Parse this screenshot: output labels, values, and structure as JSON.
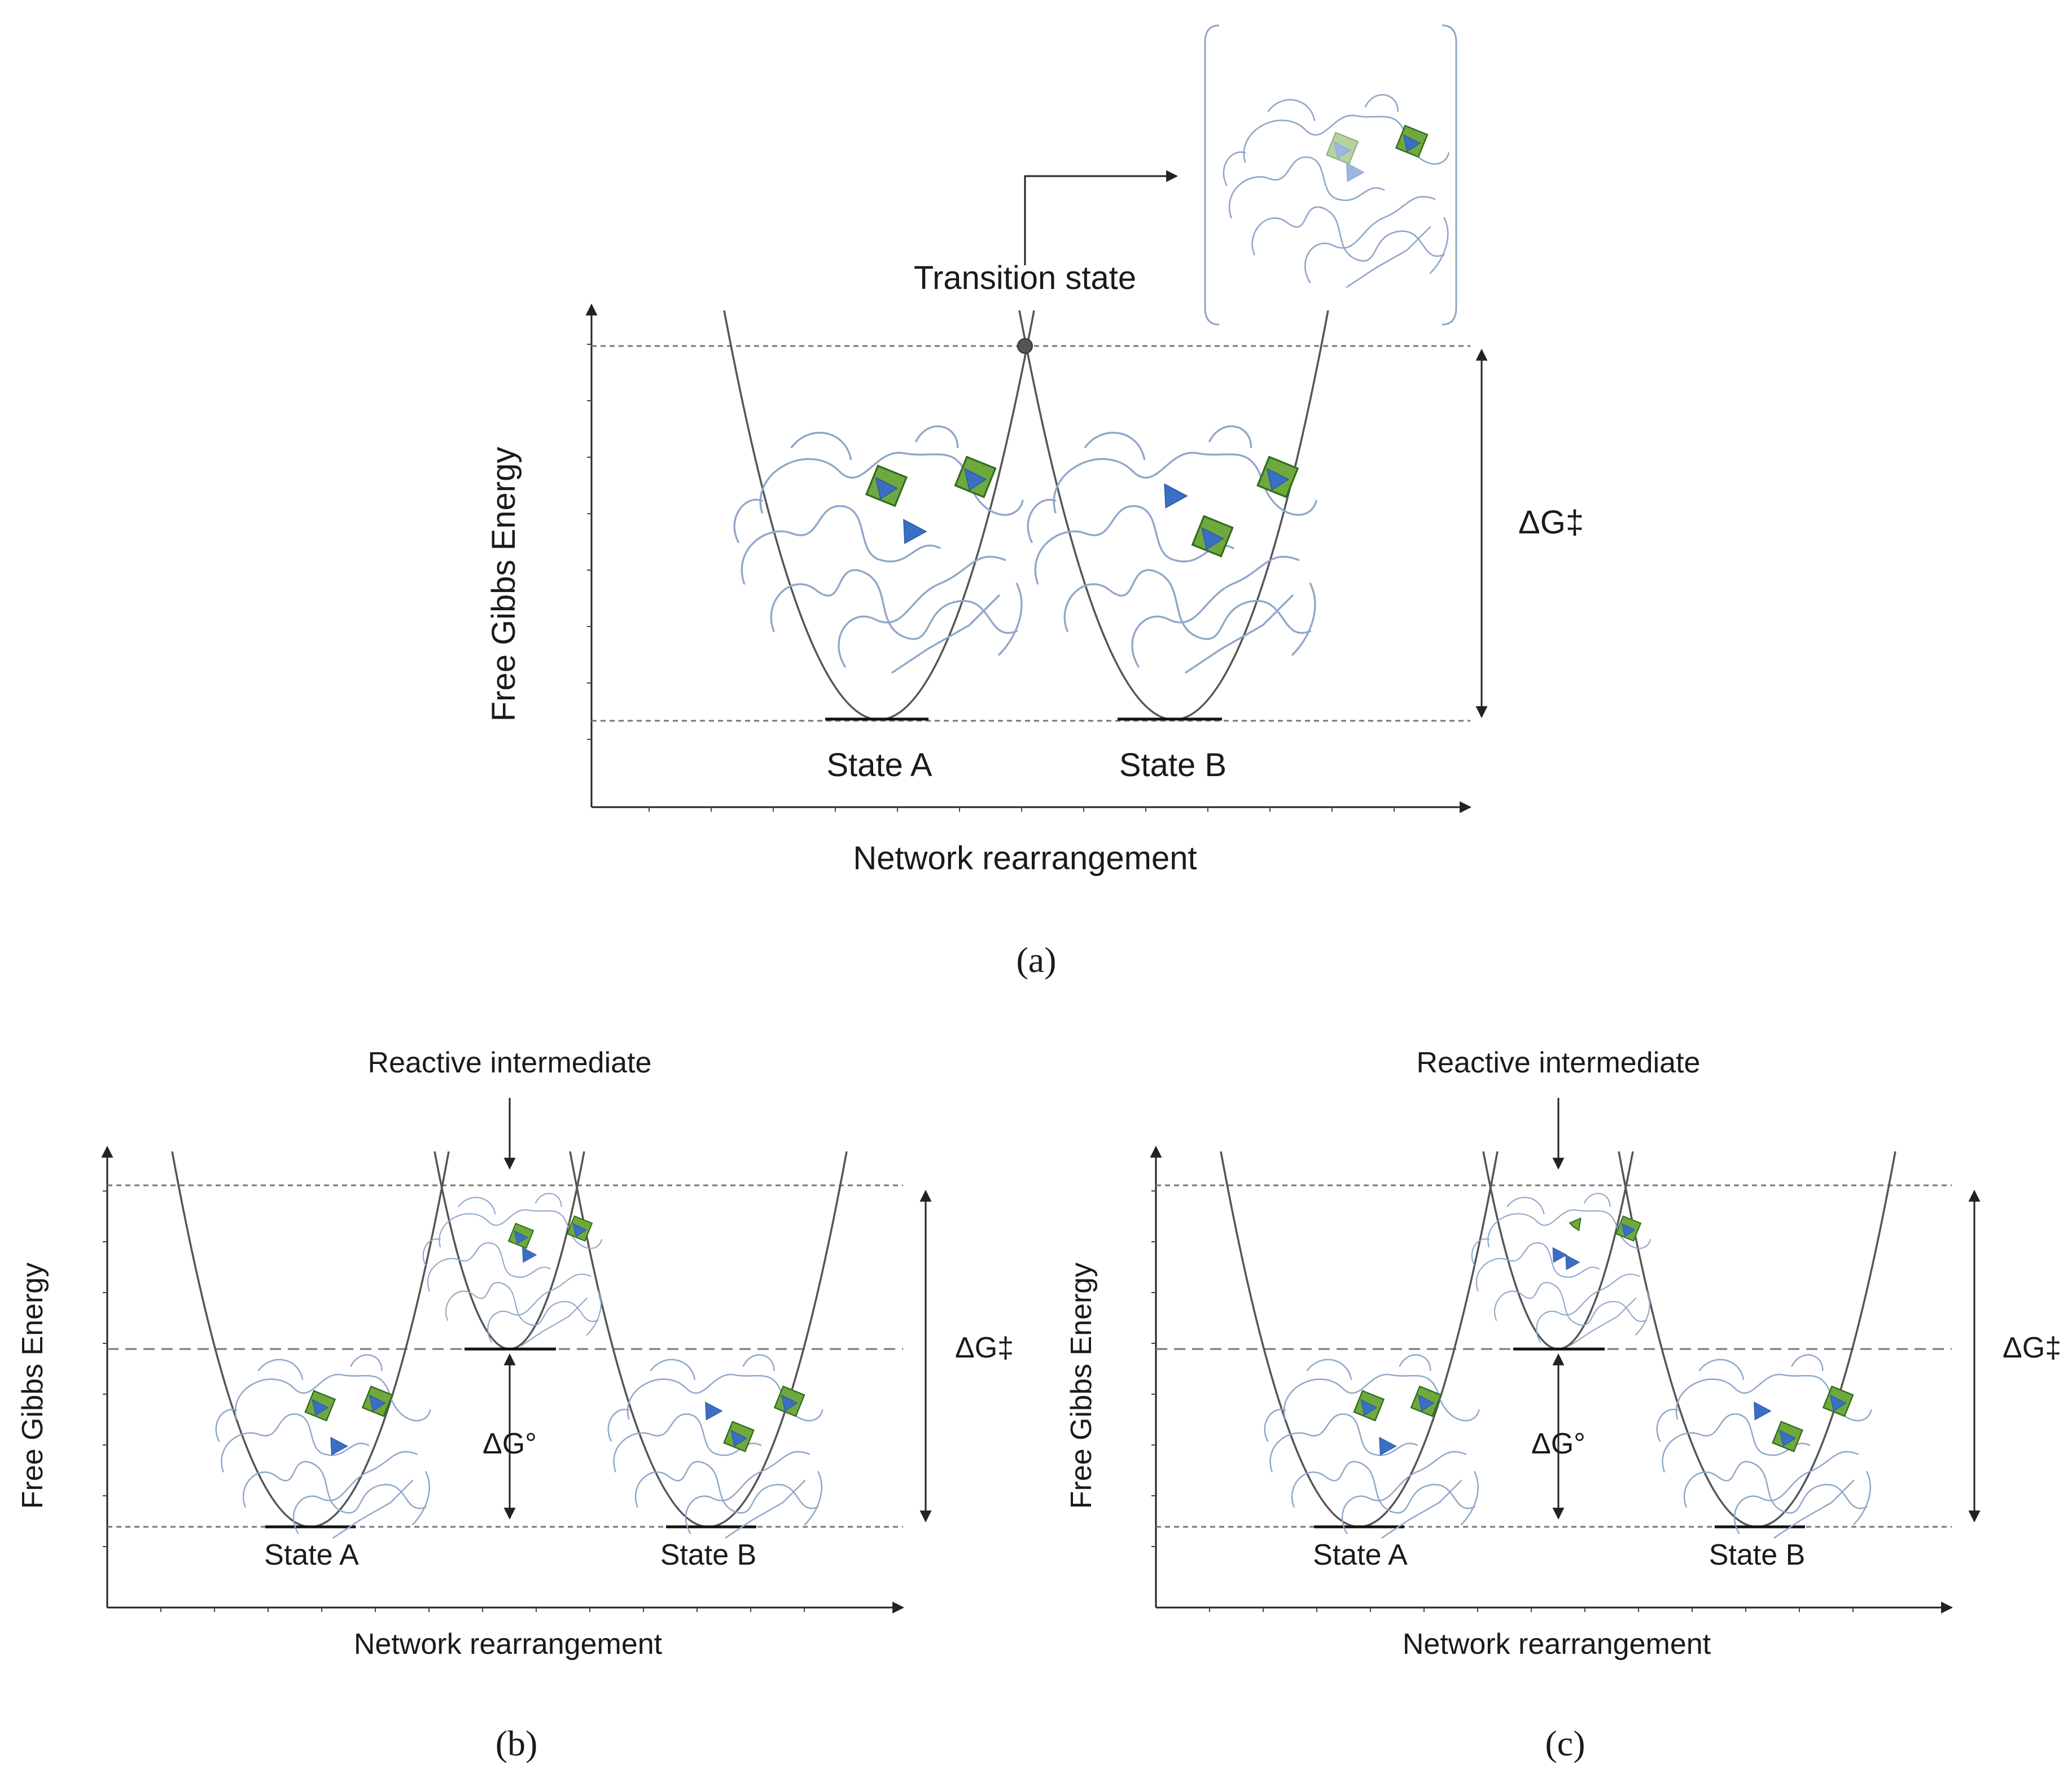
{
  "colors": {
    "curve": "#555555",
    "network": "#8fa7c9",
    "crosslink_square": "#6fa93e",
    "crosslink_triangle": "#3a6fc4",
    "transition_point": "#555555"
  },
  "panel_a": {
    "y_axis_label": "Free Gibbs Energy",
    "x_axis_label": "Network rearrangement",
    "state_a": "State A",
    "state_b": "State B",
    "transition_label": "Transition state",
    "activation_energy": "ΔG‡",
    "caption": "(a)"
  },
  "panel_b": {
    "y_axis_label": "Free Gibbs Energy",
    "x_axis_label": "Network rearrangement",
    "state_a": "State A",
    "state_b": "State B",
    "intermediate_label": "Reactive intermediate",
    "activation_energy": "ΔG‡",
    "standard_energy": "ΔG°",
    "caption": "(b)"
  },
  "panel_c": {
    "y_axis_label": "Free Gibbs Energy",
    "x_axis_label": "Network rearrangement",
    "state_a": "State A",
    "state_b": "State B",
    "intermediate_label": "Reactive intermediate",
    "activation_energy": "ΔG‡",
    "standard_energy": "ΔG°",
    "caption": "(c)"
  }
}
